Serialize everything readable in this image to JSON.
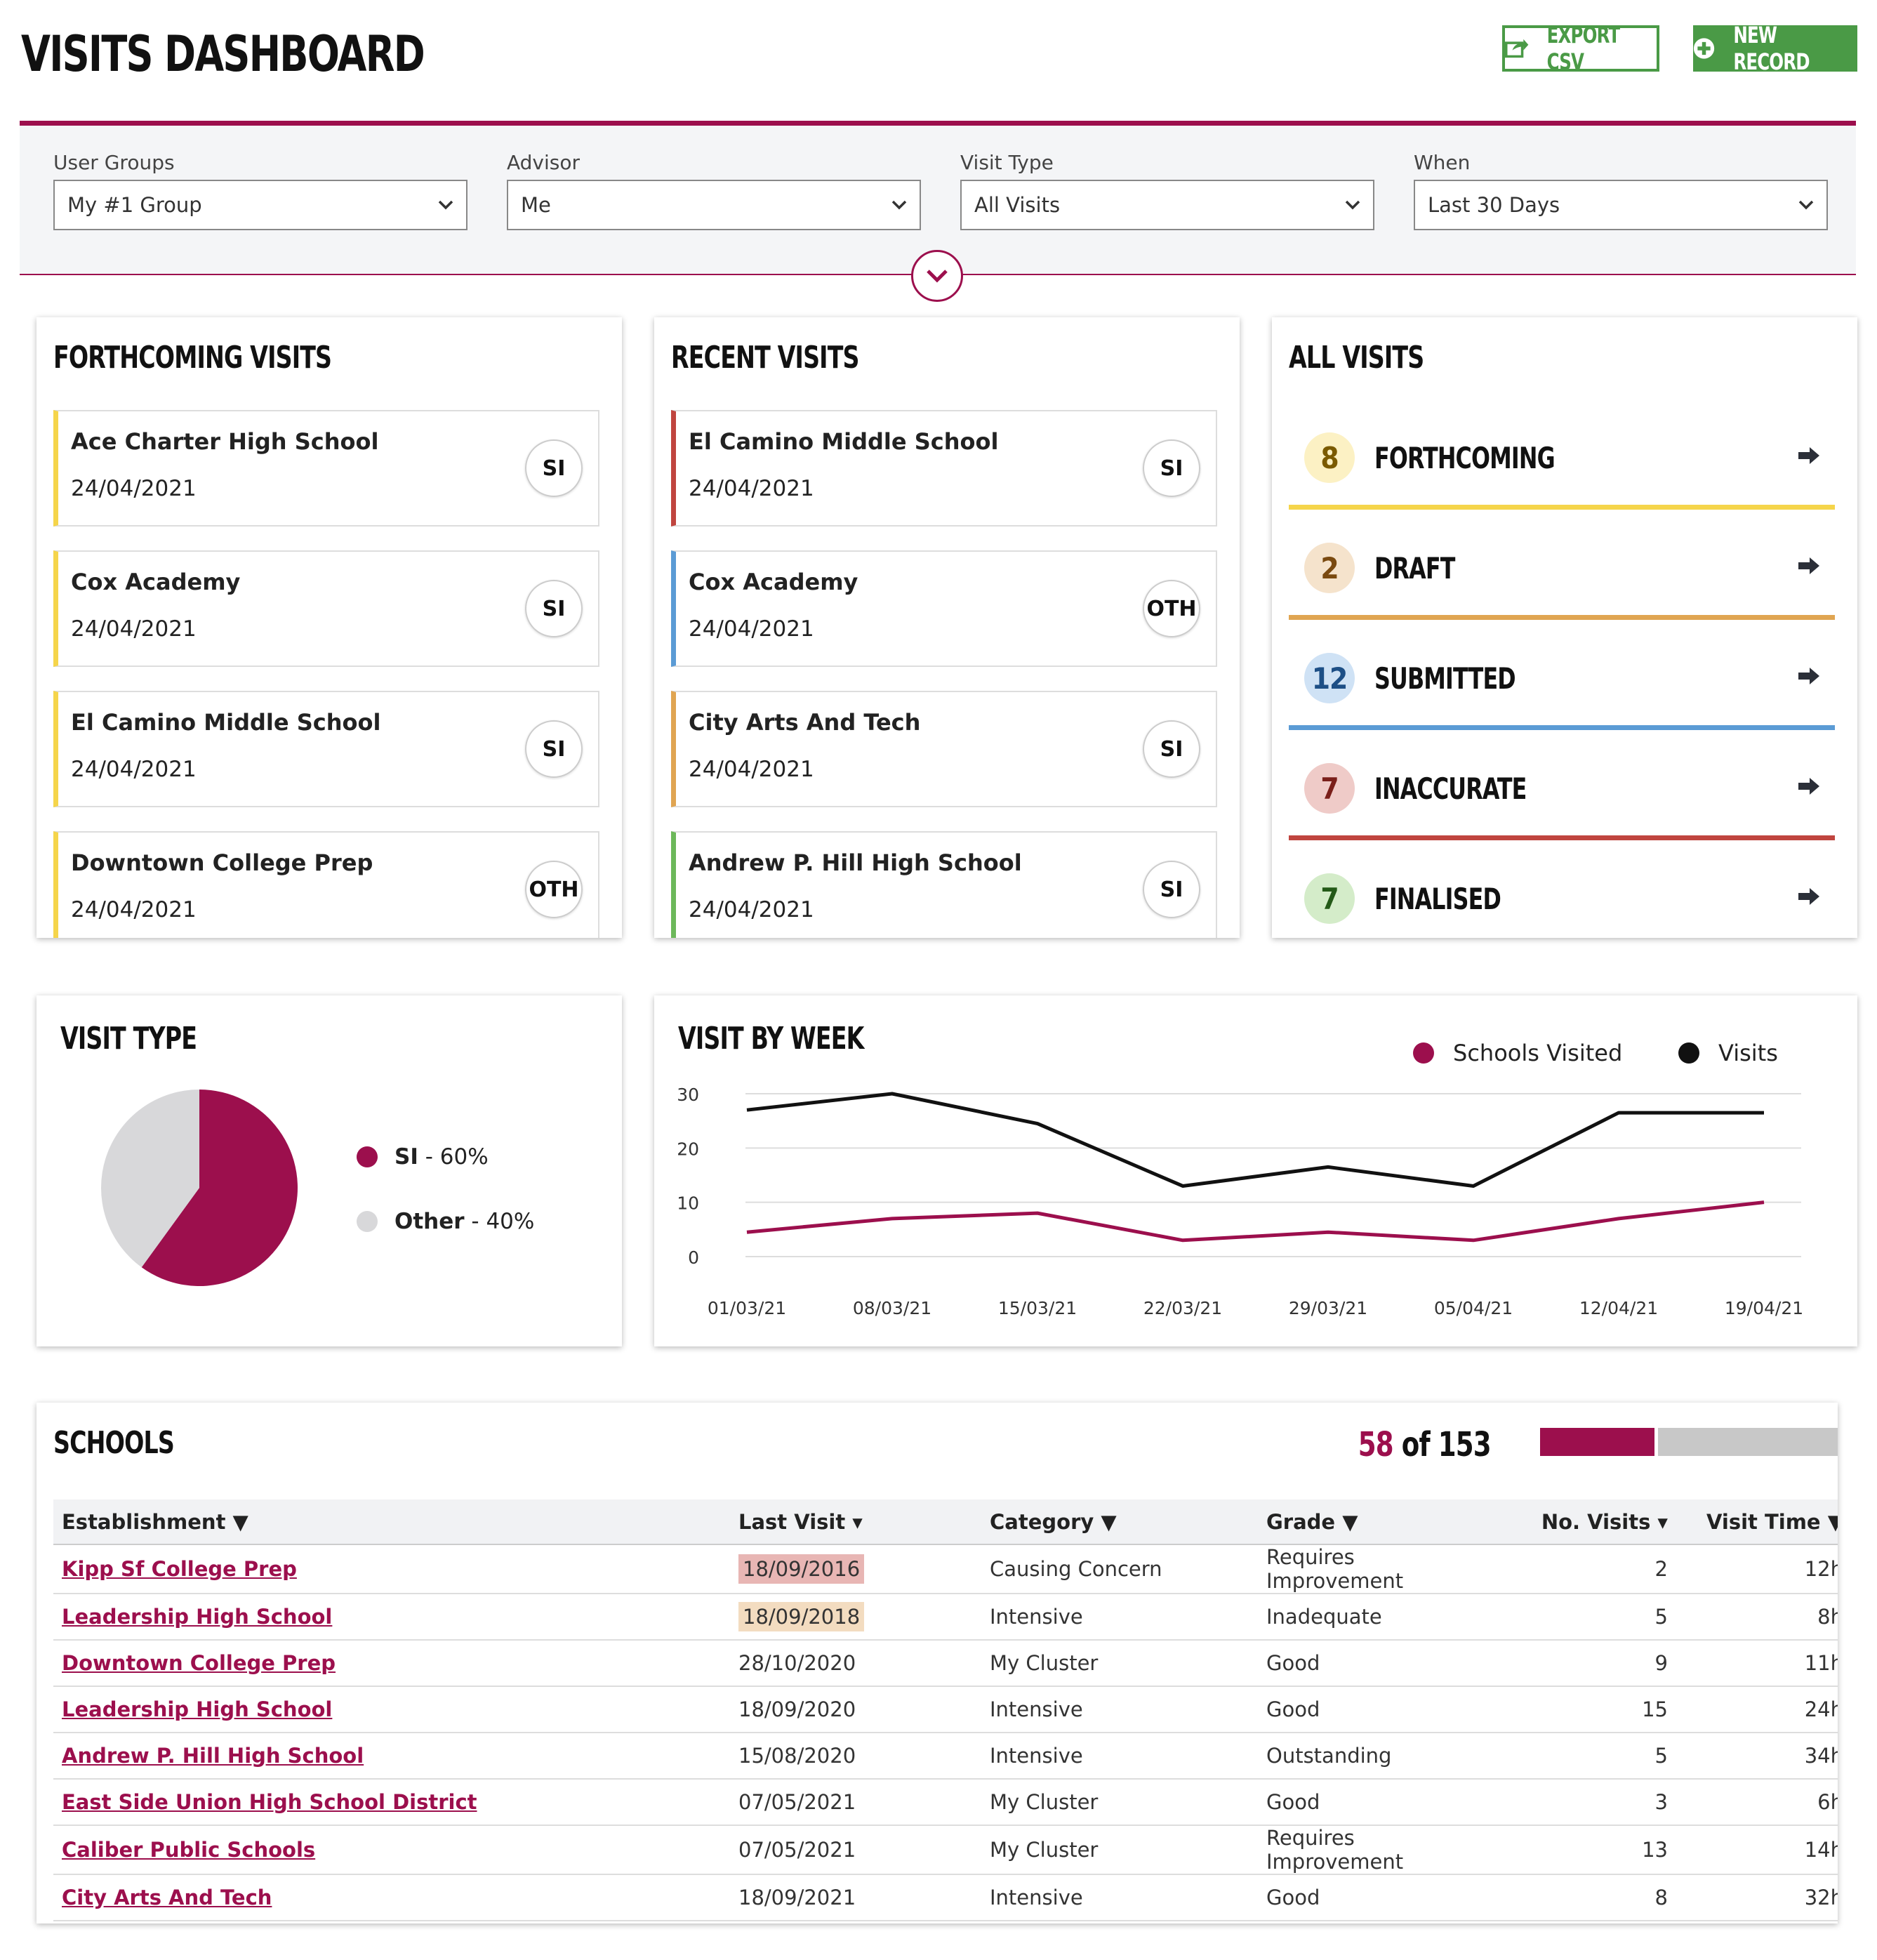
{
  "header": {
    "title": "VISITS DASHBOARD",
    "export_label": "EXPORT CSV",
    "new_label": "NEW RECORD"
  },
  "filters": [
    {
      "label": "User Groups",
      "value": "My #1 Group"
    },
    {
      "label": "Advisor",
      "value": "Me"
    },
    {
      "label": "Visit Type",
      "value": "All Visits"
    },
    {
      "label": "When",
      "value": "Last 30 Days"
    }
  ],
  "forthcoming": {
    "title": "FORTHCOMING VISITS",
    "items": [
      {
        "school": "Ace Charter High School",
        "date": "24/04/2021",
        "type": "SI",
        "color": "#f5d54b"
      },
      {
        "school": "Cox Academy",
        "date": "24/04/2021",
        "type": "SI",
        "color": "#f5d54b"
      },
      {
        "school": "El Camino Middle School",
        "date": "24/04/2021",
        "type": "SI",
        "color": "#f5d54b"
      },
      {
        "school": "Downtown College Prep",
        "date": "24/04/2021",
        "type": "OTH",
        "color": "#f5d54b"
      }
    ]
  },
  "recent": {
    "title": "RECENT VISITS",
    "items": [
      {
        "school": "El Camino Middle School",
        "date": "24/04/2021",
        "type": "SI",
        "color": "#c0453f"
      },
      {
        "school": "Cox Academy",
        "date": "24/04/2021",
        "type": "OTH",
        "color": "#5b9bd5"
      },
      {
        "school": "City Arts And Tech",
        "date": "24/04/2021",
        "type": "SI",
        "color": "#e0a552"
      },
      {
        "school": "Andrew P. Hill High School",
        "date": "24/04/2021",
        "type": "SI",
        "color": "#6cb85a"
      }
    ]
  },
  "all_visits": {
    "title": "ALL VISITS",
    "items": [
      {
        "count": "8",
        "label": "FORTHCOMING",
        "color": "#f5d54b",
        "bg": "#fcf1c4",
        "fg": "#7a5a00"
      },
      {
        "count": "2",
        "label": "DRAFT",
        "color": "#e0a552",
        "bg": "#f5e3cc",
        "fg": "#7a4a10"
      },
      {
        "count": "12",
        "label": "SUBMITTED",
        "color": "#5b9bd5",
        "bg": "#cfe2f5",
        "fg": "#1d4f86"
      },
      {
        "count": "7",
        "label": "INACCURATE",
        "color": "#c0453f",
        "bg": "#efcbc8",
        "fg": "#7a1f1a"
      },
      {
        "count": "7",
        "label": "FINALISED",
        "color": "#6cb85a",
        "bg": "#d4ecc9",
        "fg": "#245a18"
      }
    ]
  },
  "visit_type": {
    "title": "VISIT TYPE",
    "legend": [
      {
        "name": "SI",
        "suffix": " - 60%",
        "color": "#9c0f4d"
      },
      {
        "name": "Other",
        "suffix": " - 40%",
        "color": "#d8d8da"
      }
    ]
  },
  "visit_by_week": {
    "title": "VISIT BY WEEK"
  },
  "chart_data": [
    {
      "type": "pie",
      "title": "VISIT TYPE",
      "labels": [
        "SI",
        "Other"
      ],
      "values": [
        60,
        40
      ],
      "colors": [
        "#9c0f4d",
        "#d8d8da"
      ],
      "legend": "right"
    },
    {
      "type": "line",
      "title": "VISIT BY WEEK",
      "categories": [
        "01/03/21",
        "08/03/21",
        "15/03/21",
        "22/03/21",
        "29/03/21",
        "05/04/21",
        "12/04/21",
        "19/04/21"
      ],
      "yticks": [
        "0",
        "10",
        "20",
        "30"
      ],
      "ylim": [
        0,
        30
      ],
      "grid": true,
      "legend": "top-right",
      "series": [
        {
          "name": "Schools Visited",
          "color": "#9c0f4d",
          "values": [
            4.5,
            7,
            8,
            3,
            4.5,
            3,
            7,
            10
          ]
        },
        {
          "name": "Visits",
          "color": "#111111",
          "values": [
            27,
            30,
            24.5,
            13,
            16.5,
            13,
            26.5,
            26.5
          ]
        }
      ]
    }
  ],
  "schools": {
    "title": "SCHOOLS",
    "visited": "58",
    "of_label": "of",
    "total": "153",
    "fraction": 0.379,
    "columns": [
      "Establishment ▼",
      "Last Visit ▾",
      "Category ▼",
      "Grade ▼",
      "No. Visits ▾",
      "Visit Time ▼"
    ],
    "rows": [
      {
        "name": "Kipp Sf College Prep",
        "last": "18/09/2016",
        "hl": "red",
        "category": "Causing Concern",
        "grade": "Requires Improvement",
        "visits": "2",
        "time": "12h"
      },
      {
        "name": "Leadership High School",
        "last": "18/09/2018",
        "hl": "amber",
        "category": "Intensive",
        "grade": "Inadequate",
        "visits": "5",
        "time": "8h"
      },
      {
        "name": "Downtown College Prep",
        "last": "28/10/2020",
        "hl": "",
        "category": "My Cluster",
        "grade": "Good",
        "visits": "9",
        "time": "11h"
      },
      {
        "name": "Leadership High School",
        "last": "18/09/2020",
        "hl": "",
        "category": "Intensive",
        "grade": "Good",
        "visits": "15",
        "time": "24h"
      },
      {
        "name": "Andrew P. Hill High School",
        "last": "15/08/2020",
        "hl": "",
        "category": "Intensive",
        "grade": "Outstanding",
        "visits": "5",
        "time": "34h"
      },
      {
        "name": "East Side Union High School District",
        "last": "07/05/2021",
        "hl": "",
        "category": "My Cluster",
        "grade": "Good",
        "visits": "3",
        "time": "6h"
      },
      {
        "name": "Caliber Public Schools",
        "last": "07/05/2021",
        "hl": "",
        "category": "My Cluster",
        "grade": "Requires Improvement",
        "visits": "13",
        "time": "14h"
      },
      {
        "name": "City Arts And Tech",
        "last": "18/09/2021",
        "hl": "",
        "category": "Intensive",
        "grade": "Good",
        "visits": "8",
        "time": "32h"
      }
    ]
  }
}
